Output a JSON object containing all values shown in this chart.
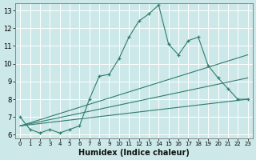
{
  "xlabel": "Humidex (Indice chaleur)",
  "bg_color": "#cce8e8",
  "grid_color": "#ffffff",
  "line_color": "#2e7d6e",
  "xlim": [
    -0.5,
    23.5
  ],
  "ylim": [
    5.8,
    13.4
  ],
  "xticks": [
    0,
    1,
    2,
    3,
    4,
    5,
    6,
    7,
    8,
    9,
    10,
    11,
    12,
    13,
    14,
    15,
    16,
    17,
    18,
    19,
    20,
    21,
    22,
    23
  ],
  "yticks": [
    6,
    7,
    8,
    9,
    10,
    11,
    12,
    13
  ],
  "series1_x": [
    0,
    1,
    2,
    3,
    4,
    5,
    6,
    7,
    8,
    9,
    10,
    11,
    12,
    13,
    14,
    15,
    16,
    17,
    18,
    19,
    20,
    21,
    22,
    23
  ],
  "series1_y": [
    7.0,
    6.3,
    6.1,
    6.3,
    6.1,
    6.3,
    6.5,
    8.0,
    9.3,
    9.4,
    10.3,
    11.5,
    12.4,
    12.8,
    13.3,
    11.1,
    10.5,
    11.3,
    11.5,
    9.9,
    9.2,
    8.6,
    8.0,
    8.0
  ],
  "line2_x": [
    0,
    23
  ],
  "line2_y": [
    6.5,
    10.5
  ],
  "line3_x": [
    0,
    23
  ],
  "line3_y": [
    6.5,
    9.2
  ],
  "line4_x": [
    0,
    23
  ],
  "line4_y": [
    6.5,
    8.0
  ],
  "xlabel_fontsize": 7,
  "tick_fontsize": 6
}
